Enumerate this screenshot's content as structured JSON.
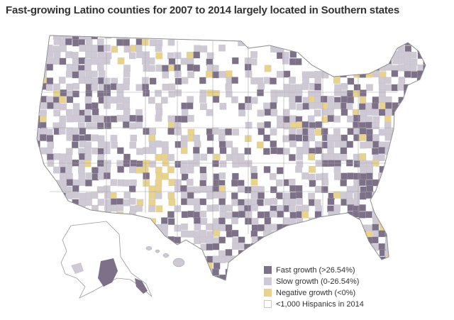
{
  "title": "Fast-growing  Latino counties for 2007 to 2014 largely located in Southern states",
  "legend": [
    {
      "label": "Fast growth (>26.54%)",
      "color": "#7d7089",
      "key": "fast"
    },
    {
      "label": "Slow growth (0-26.54%)",
      "color": "#cfc9d6",
      "key": "slow"
    },
    {
      "label": "Negative growth (<0%)",
      "color": "#e9d38b",
      "key": "negative"
    },
    {
      "label": "<1,000 Hispanics in 2014",
      "color": "#ffffff",
      "key": "none"
    }
  ],
  "colors": {
    "fast": "#7d7089",
    "slow": "#cfc9d6",
    "negative": "#e9d38b",
    "none": "#ffffff",
    "border": "#bdbdbd",
    "title": "#333333"
  }
}
